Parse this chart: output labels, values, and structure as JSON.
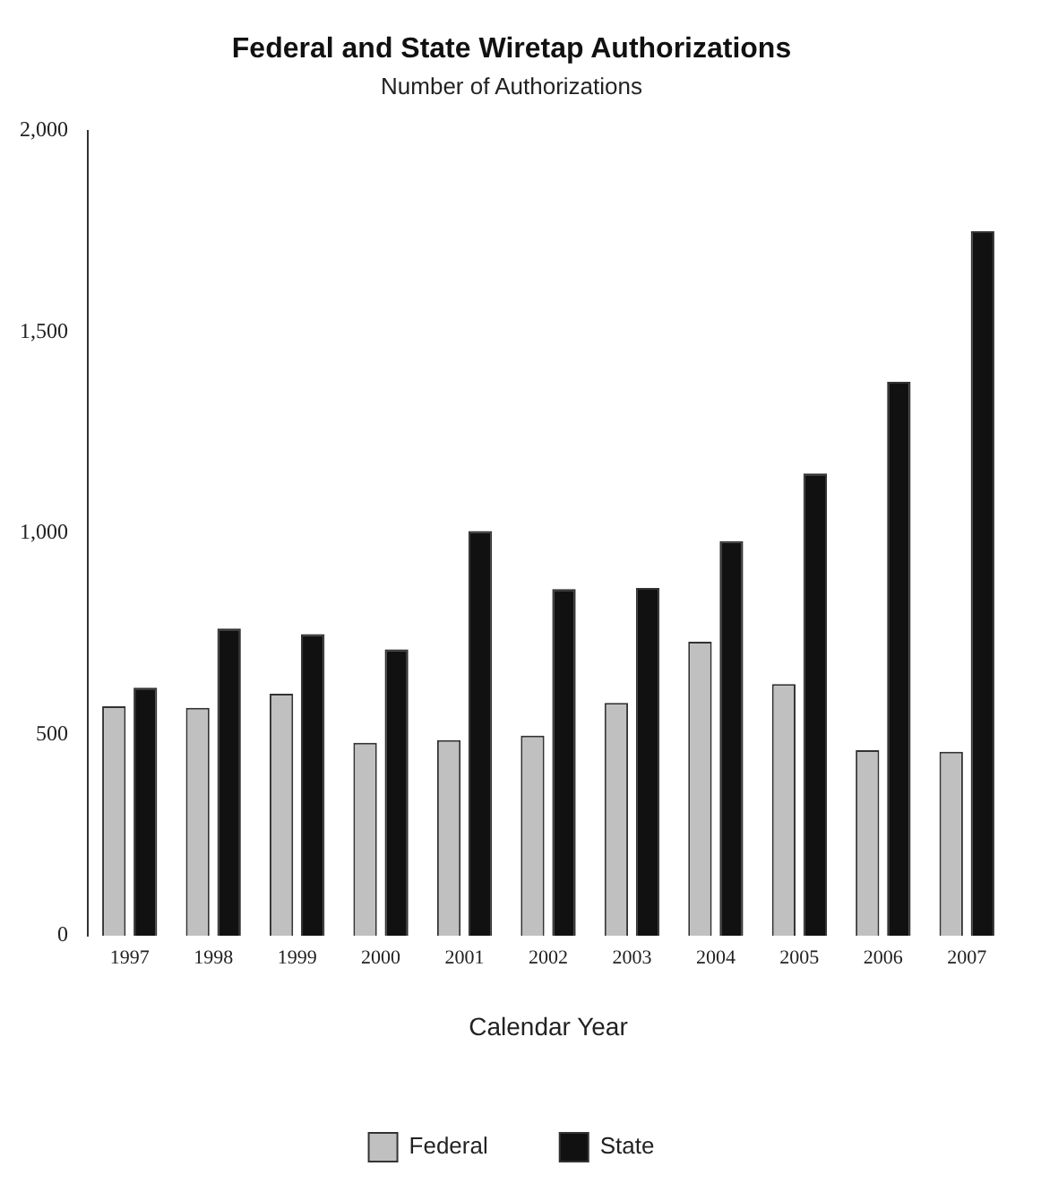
{
  "chart_data": {
    "type": "bar",
    "title": "Federal and State Wiretap Authorizations",
    "subtitle": "Number of Authorizations",
    "xlabel": "Calendar Year",
    "categories": [
      "1997",
      "1998",
      "1999",
      "2000",
      "2001",
      "2002",
      "2003",
      "2004",
      "2005",
      "2006",
      "2007"
    ],
    "series": [
      {
        "name": "Federal",
        "color": "#c0c0c0",
        "values": [
          570,
          566,
          601,
          479,
          486,
          497,
          578,
          730,
          625,
          461,
          457
        ]
      },
      {
        "name": "State",
        "color": "#111111",
        "values": [
          616,
          763,
          749,
          711,
          1005,
          861,
          864,
          980,
          1148,
          1376,
          1750
        ]
      }
    ],
    "ylim": [
      0,
      2000
    ],
    "yticks": [
      {
        "value": 0,
        "label": "0"
      },
      {
        "value": 500,
        "label": "500"
      },
      {
        "value": 1000,
        "label": "1,000"
      },
      {
        "value": 1500,
        "label": "1,500"
      },
      {
        "value": 2000,
        "label": "2,000"
      }
    ],
    "grid": false,
    "legend": "bottom"
  }
}
